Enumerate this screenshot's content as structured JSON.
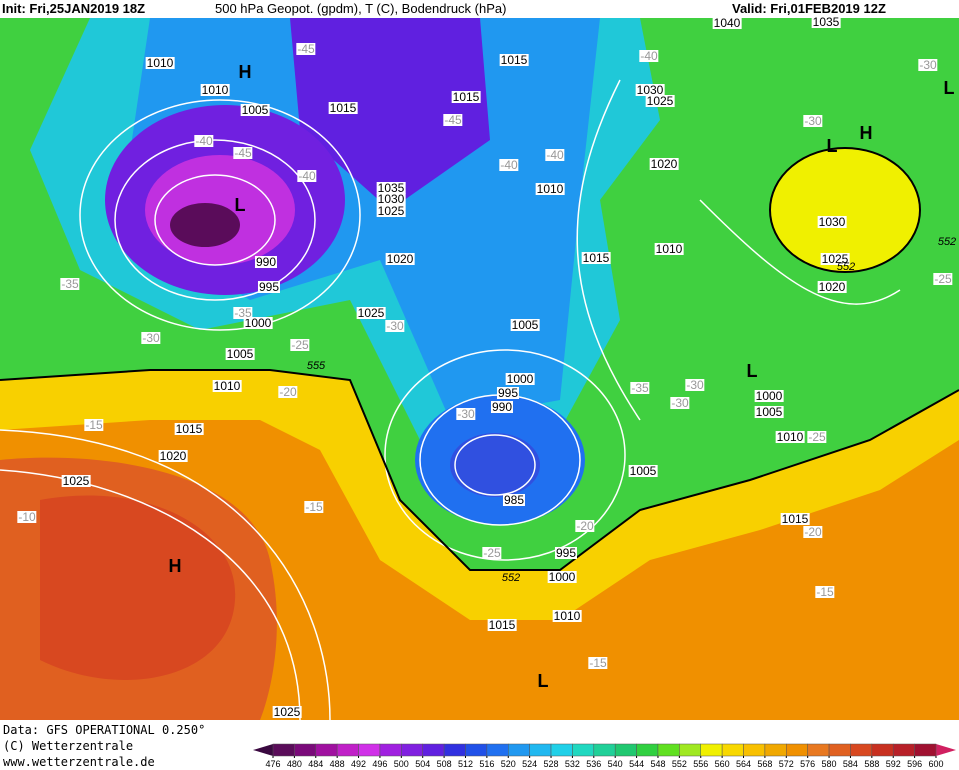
{
  "header": {
    "init": "Init: Fri,25JAN2019 18Z",
    "title": "500 hPa Geopot. (gpdm), T (C), Bodendruck (hPa)",
    "valid": "Valid: Fri,01FEB2019 12Z"
  },
  "footer": {
    "source": "Data: GFS OPERATIONAL 0.250°",
    "copyright": "(C) Wetterzentrale",
    "website": "www.wetterzentrale.de"
  },
  "isobar_labels": [
    "1010",
    "1010",
    "1005",
    "1015",
    "1015",
    "1015",
    "1040",
    "1035",
    "1030",
    "1025",
    "1020",
    "1035",
    "1030",
    "1025",
    "1010",
    "1020",
    "990",
    "995",
    "1000",
    "1005",
    "1010",
    "1025",
    "1015",
    "1010",
    "1030",
    "1025",
    "1020",
    "1005",
    "1000",
    "995",
    "990",
    "1000",
    "1005",
    "1010",
    "1015",
    "1020",
    "1025",
    "985",
    "1005",
    "995",
    "1000",
    "1010",
    "1015",
    "1015",
    "1025"
  ],
  "temperature_labels": [
    "-45",
    "-40",
    "-30",
    "-30",
    "-40",
    "-45",
    "-40",
    "-45",
    "-40",
    "-40",
    "-35",
    "-30",
    "-35",
    "-30",
    "-25",
    "-20",
    "-15",
    "-10",
    "-15",
    "-35",
    "-30",
    "-30",
    "-30",
    "-20",
    "-25",
    "-20",
    "-15",
    "-15",
    "-25",
    "-25"
  ],
  "height_labels": [
    "555",
    "552",
    "552",
    "552"
  ],
  "pressure_centers": [
    "H",
    "H",
    "L",
    "L",
    "L",
    "H",
    "L",
    "L"
  ],
  "colorbar": {
    "ticks": [
      476,
      480,
      484,
      488,
      492,
      496,
      500,
      504,
      508,
      512,
      516,
      520,
      524,
      528,
      532,
      536,
      540,
      544,
      548,
      552,
      556,
      560,
      564,
      568,
      572,
      576,
      580,
      584,
      588,
      592,
      596,
      600
    ],
    "colors": [
      "#5a0c5a",
      "#7a0a7a",
      "#a010a0",
      "#c020c8",
      "#d030e8",
      "#a020e0",
      "#8020e0",
      "#6020e0",
      "#3030e0",
      "#2050e8",
      "#2070f0",
      "#2098f0",
      "#20b8f0",
      "#20d0e8",
      "#20d8c0",
      "#20d098",
      "#20c870",
      "#30d040",
      "#60e020",
      "#a0e820",
      "#f0f000",
      "#f8d800",
      "#f8c000",
      "#f0a800",
      "#f09000",
      "#e87820",
      "#e06020",
      "#d84820",
      "#c83020",
      "#b82028",
      "#a01030"
    ]
  }
}
